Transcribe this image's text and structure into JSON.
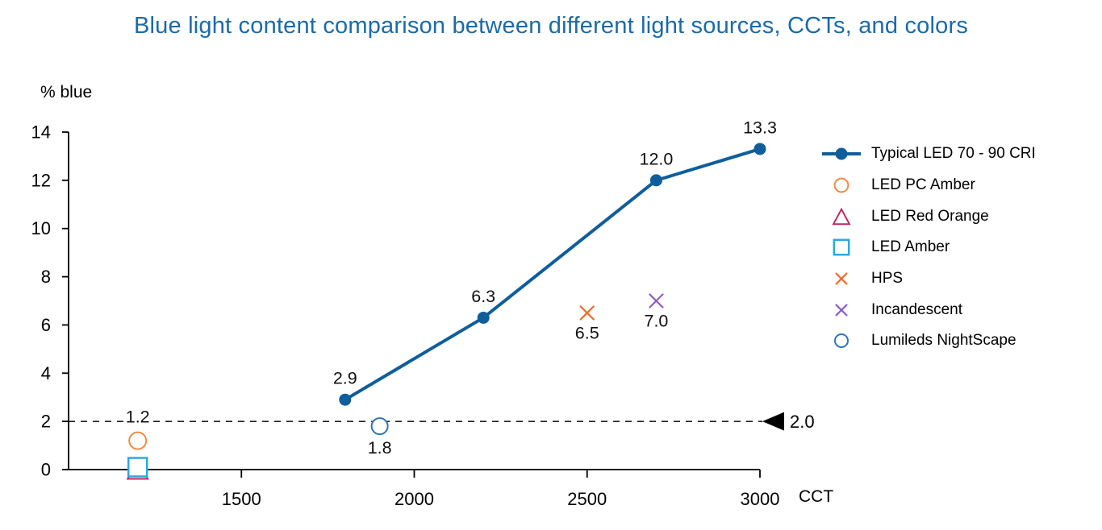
{
  "page": {
    "background": "#ffffff",
    "title_color": "#1a6ba9"
  },
  "chart_data": {
    "type": "scatter",
    "title": "Blue light content comparison between different light sources, CCTs, and colors",
    "xlabel": "CCT",
    "ylabel": "% blue",
    "xlim": [
      1000,
      3000
    ],
    "ylim": [
      0,
      14
    ],
    "grid": false,
    "legend_position": "right",
    "x_ticks": [
      {
        "value": 1500,
        "label": "1500"
      },
      {
        "value": 2000,
        "label": "2000"
      },
      {
        "value": 2500,
        "label": "2500"
      },
      {
        "value": 3000,
        "label": "3000"
      }
    ],
    "y_ticks": [
      {
        "value": 0,
        "label": "0"
      },
      {
        "value": 2,
        "label": "2"
      },
      {
        "value": 4,
        "label": "4"
      },
      {
        "value": 6,
        "label": "6"
      },
      {
        "value": 8,
        "label": "8"
      },
      {
        "value": 10,
        "label": "10"
      },
      {
        "value": 12,
        "label": "12"
      },
      {
        "value": 14,
        "label": "14"
      }
    ],
    "reference_line": {
      "y": 2.0,
      "label": "2.0",
      "style": "dashed",
      "color": "#000000",
      "arrow": "left"
    },
    "series": [
      {
        "name": "Typical LED 70 - 90 CRI",
        "type": "line",
        "marker": "circle-filled",
        "color": "#0f5e9b",
        "size": 7.5,
        "points": [
          {
            "x": 1800,
            "y": 2.9,
            "label": "2.9",
            "label_pos": "above"
          },
          {
            "x": 2200,
            "y": 6.3,
            "label": "6.3",
            "label_pos": "above"
          },
          {
            "x": 2700,
            "y": 12.0,
            "label": "12.0",
            "label_pos": "above"
          },
          {
            "x": 3000,
            "y": 13.3,
            "label": "13.3",
            "label_pos": "above"
          }
        ]
      },
      {
        "name": "LED PC Amber",
        "type": "scatter",
        "marker": "circle-open",
        "color": "#f08b45",
        "size": 10.5,
        "points": [
          {
            "x": 1200,
            "y": 1.2,
            "label": "1.2",
            "label_pos": "above"
          }
        ]
      },
      {
        "name": "LED Red Orange",
        "type": "scatter",
        "marker": "triangle-open",
        "color": "#c2265c",
        "size": 11.5,
        "points": [
          {
            "x": 1200,
            "y": 0.0
          }
        ]
      },
      {
        "name": "LED Amber",
        "type": "scatter",
        "marker": "square-open",
        "color": "#29a9e1",
        "size": 11.5,
        "points": [
          {
            "x": 1200,
            "y": 0.1
          }
        ]
      },
      {
        "name": "HPS",
        "type": "scatter",
        "marker": "x",
        "color": "#f26b26",
        "size": 8,
        "points": [
          {
            "x": 2500,
            "y": 6.5,
            "label": "6.5",
            "label_pos": "below"
          }
        ]
      },
      {
        "name": "Incandescent",
        "type": "scatter",
        "marker": "x",
        "color": "#8a5cc6",
        "size": 8,
        "points": [
          {
            "x": 2700,
            "y": 7.0,
            "label": "7.0",
            "label_pos": "below"
          }
        ]
      },
      {
        "name": "Lumileds NightScape",
        "type": "scatter",
        "marker": "circle-open",
        "color": "#2e75b6",
        "size": 10,
        "points": [
          {
            "x": 1900,
            "y": 1.8,
            "label": "1.8",
            "label_pos": "below"
          }
        ]
      }
    ]
  }
}
